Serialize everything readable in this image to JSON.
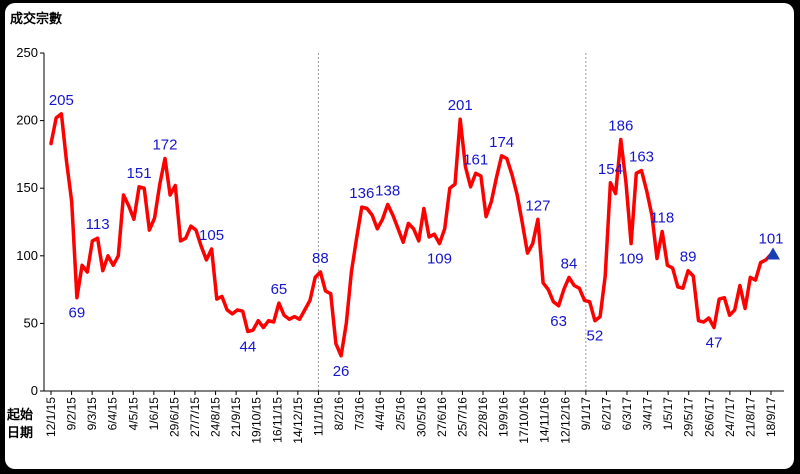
{
  "chart_data": {
    "type": "line",
    "ylabel": "成交宗數",
    "xlabel": [
      "起始",
      "日期"
    ],
    "ylim": [
      0,
      250
    ],
    "yticks": [
      0,
      50,
      100,
      150,
      200,
      250
    ],
    "xticks": [
      "12/1/15",
      "9/2/15",
      "9/3/15",
      "6/4/15",
      "4/5/15",
      "1/6/15",
      "29/6/15",
      "27/7/15",
      "24/8/15",
      "21/9/15",
      "19/10/15",
      "16/11/15",
      "14/12/15",
      "11/1/16",
      "8/2/16",
      "7/3/16",
      "4/4/16",
      "2/5/16",
      "30/5/16",
      "27/6/16",
      "25/7/16",
      "22/8/16",
      "19/9/16",
      "17/10/16",
      "14/11/16",
      "12/12/16",
      "9/1/17",
      "6/2/17",
      "6/3/17",
      "3/4/17",
      "1/5/17",
      "29/5/17",
      "26/6/17",
      "24/7/17",
      "21/8/17",
      "18/9/17"
    ],
    "year_dividers": [
      "11/1/16",
      "9/1/17"
    ],
    "series": [
      {
        "color": "#ff0000",
        "values": [
          183,
          202,
          205,
          170,
          140,
          69,
          93,
          88,
          111,
          113,
          89,
          100,
          93,
          100,
          145,
          137,
          127,
          151,
          150,
          119,
          128,
          153,
          172,
          145,
          152,
          111,
          113,
          122,
          119,
          107,
          97,
          105,
          68,
          70,
          60,
          57,
          60,
          59,
          44,
          45,
          52,
          47,
          52,
          51,
          65,
          56,
          53,
          55,
          53,
          60,
          67,
          84,
          88,
          74,
          72,
          35,
          26,
          50,
          88,
          113,
          136,
          135,
          130,
          120,
          127,
          138,
          130,
          120,
          110,
          124,
          120,
          111,
          135,
          114,
          116,
          109,
          120,
          150,
          153,
          201,
          166,
          151,
          161,
          159,
          129,
          140,
          158,
          174,
          172,
          160,
          145,
          124,
          102,
          109,
          127,
          80,
          75,
          66,
          63,
          75,
          84,
          78,
          76,
          67,
          66,
          52,
          55,
          85,
          154,
          146,
          186,
          154,
          109,
          161,
          163,
          148,
          130,
          98,
          118,
          93,
          91,
          77,
          76,
          89,
          85,
          52,
          51,
          54,
          47,
          68,
          69,
          56,
          60,
          78,
          61,
          84,
          82,
          95,
          97,
          101
        ]
      }
    ],
    "annotations": [
      {
        "label": "205",
        "index": 2
      },
      {
        "label": "69",
        "index": 5
      },
      {
        "label": "113",
        "index": 9
      },
      {
        "label": "151",
        "index": 17
      },
      {
        "label": "172",
        "index": 22
      },
      {
        "label": "105",
        "index": 31
      },
      {
        "label": "44",
        "index": 38
      },
      {
        "label": "65",
        "index": 44
      },
      {
        "label": "88",
        "index": 52
      },
      {
        "label": "26",
        "index": 56
      },
      {
        "label": "136",
        "index": 60
      },
      {
        "label": "138",
        "index": 65
      },
      {
        "label": "109",
        "index": 75
      },
      {
        "label": "201",
        "index": 79
      },
      {
        "label": "161",
        "index": 82
      },
      {
        "label": "174",
        "index": 87
      },
      {
        "label": "127",
        "index": 94
      },
      {
        "label": "63",
        "index": 98
      },
      {
        "label": "84",
        "index": 100
      },
      {
        "label": "52",
        "index": 105
      },
      {
        "label": "154",
        "index": 108
      },
      {
        "label": "186",
        "index": 110
      },
      {
        "label": "109",
        "index": 112
      },
      {
        "label": "163",
        "index": 114
      },
      {
        "label": "118",
        "index": 118
      },
      {
        "label": "89",
        "index": 123
      },
      {
        "label": "47",
        "index": 128
      },
      {
        "label": "101",
        "index": 139
      }
    ],
    "end_marker": {
      "shape": "triangle",
      "color": "#1a3fb5"
    },
    "grid": false
  }
}
